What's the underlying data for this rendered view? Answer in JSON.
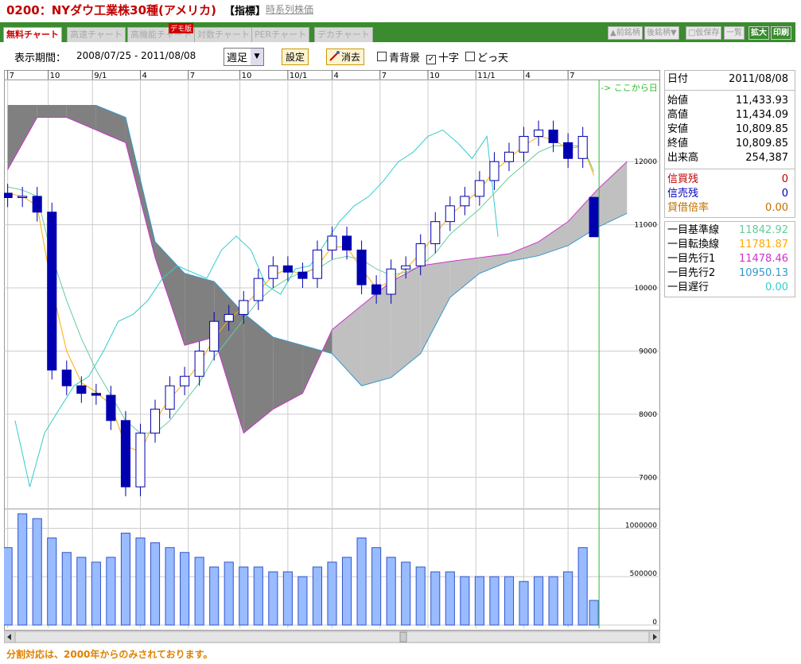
{
  "header": {
    "title": "0200：NYダウ工業株30種(アメリカ)",
    "indicator": "【指標】",
    "link": "時系列株価"
  },
  "tabs": [
    "無料チャート",
    "高速チャート",
    "高機能チャート",
    "対数チャート",
    "PERチャート",
    "デカチャート"
  ],
  "tab_badge": "デモ版",
  "nav_buttons": [
    "▲前銘柄",
    "後銘柄▼",
    "□仮保存",
    "一覧",
    "拡大",
    "印刷"
  ],
  "toolbar": {
    "period_label": "表示期間：",
    "period": "2008/07/25 - 2011/08/08",
    "interval": "週足",
    "set_button": "設定",
    "clear_button": "消去",
    "checkboxes": [
      {
        "label": "青背景",
        "checked": false
      },
      {
        "label": "十字",
        "checked": true
      },
      {
        "label": "どっ天",
        "checked": false
      }
    ]
  },
  "panel": {
    "date_label": "日付",
    "date": "2011/08/08",
    "prices": [
      [
        "始値",
        "11,433.93"
      ],
      [
        "高値",
        "11,434.09"
      ],
      [
        "安値",
        "10,809.85"
      ],
      [
        "終値",
        "10,809.85"
      ],
      [
        "出来高",
        "254,387"
      ]
    ],
    "margin": [
      [
        "信買残",
        "0"
      ],
      [
        "信売残",
        "0"
      ],
      [
        "貸借倍率",
        "0.00"
      ]
    ]
  },
  "footer": "分割対応は、2000年からのみされております。",
  "chart_data": {
    "type": "candlestick",
    "x": [
      0,
      4,
      8,
      12,
      16,
      20,
      24,
      28,
      32,
      36,
      40,
      44,
      48,
      52,
      56,
      60,
      64,
      68,
      72,
      76,
      80,
      84,
      88,
      92,
      96,
      100,
      104,
      108,
      112,
      116,
      120,
      124,
      128,
      132,
      136,
      140,
      144,
      148,
      152,
      156,
      159
    ],
    "open": [
      11500,
      11430,
      11450,
      11200,
      8700,
      8450,
      8330,
      8300,
      7900,
      6850,
      7700,
      8080,
      8450,
      8600,
      9000,
      9470,
      9580,
      9800,
      10150,
      10350,
      10250,
      10150,
      10600,
      10820,
      10600,
      10050,
      9900,
      10300,
      10350,
      10700,
      11050,
      11300,
      11450,
      11700,
      12000,
      12150,
      12400,
      12500,
      12300,
      12050,
      11434
    ],
    "high": [
      11650,
      11600,
      11600,
      11350,
      8850,
      8600,
      8480,
      8450,
      8050,
      7850,
      8230,
      8600,
      8750,
      9150,
      9620,
      9730,
      9950,
      10300,
      10500,
      10500,
      10400,
      10750,
      10970,
      10970,
      10750,
      10200,
      10450,
      10500,
      10850,
      11200,
      11450,
      11600,
      11850,
      12150,
      12300,
      12550,
      12650,
      12650,
      12450,
      12550,
      11434
    ],
    "low": [
      11280,
      11280,
      11050,
      8550,
      8300,
      8180,
      8150,
      7750,
      6700,
      6700,
      7550,
      7930,
      8300,
      8450,
      8850,
      9320,
      9430,
      9650,
      10000,
      10100,
      10000,
      10000,
      10450,
      10450,
      9900,
      9750,
      9750,
      10150,
      10200,
      10550,
      10900,
      11150,
      11300,
      11550,
      11850,
      12000,
      12250,
      12150,
      11900,
      11900,
      10810
    ],
    "close": [
      11430,
      11450,
      11200,
      8700,
      8450,
      8330,
      8300,
      7900,
      6850,
      7700,
      8080,
      8450,
      8600,
      9000,
      9470,
      9580,
      9800,
      10150,
      10350,
      10250,
      10150,
      10600,
      10820,
      10600,
      10050,
      9900,
      10300,
      10350,
      10700,
      11050,
      11300,
      11450,
      11700,
      12000,
      12150,
      12400,
      12500,
      12300,
      12050,
      12400,
      10810
    ],
    "volume": [
      800000,
      1150000,
      1100000,
      900000,
      750000,
      700000,
      650000,
      700000,
      950000,
      900000,
      850000,
      800000,
      750000,
      700000,
      600000,
      650000,
      600000,
      600000,
      550000,
      550000,
      500000,
      600000,
      650000,
      700000,
      900000,
      800000,
      700000,
      650000,
      600000,
      550000,
      550000,
      500000,
      500000,
      500000,
      500000,
      450000,
      500000,
      500000,
      550000,
      800000,
      254387
    ],
    "candle_colors": {
      "up": "#ffffff",
      "down": "#0000b0",
      "edge": "#0000b0"
    },
    "volume_color": "#99bbff",
    "cloud_colors": {
      "up": "#c0c0c0",
      "down": "#808080"
    },
    "series": [
      {
        "name": "一目基準線",
        "color": "#66cc99",
        "legend_value": "11842.92",
        "values": [
          11600,
          11550,
          11450,
          10500,
          9800,
          9200,
          8700,
          8300,
          7900,
          7700,
          7700,
          7900,
          8200,
          8500,
          8900,
          9200,
          9500,
          9800,
          10000,
          10150,
          10250,
          10300,
          10450,
          10500,
          10450,
          10300,
          10200,
          10250,
          10350,
          10550,
          10850,
          11050,
          11250,
          11500,
          11750,
          11950,
          12150,
          12250,
          12250,
          12250,
          11843
        ]
      },
      {
        "name": "一目転換線",
        "color": "#ffaa00",
        "legend_value": "11781.87",
        "values": [
          11500,
          11450,
          11300,
          10000,
          9000,
          8500,
          8350,
          8150,
          7500,
          7400,
          7900,
          8250,
          8500,
          8800,
          9200,
          9500,
          9700,
          9950,
          10200,
          10300,
          10200,
          10350,
          10650,
          10650,
          10300,
          10000,
          10100,
          10300,
          10550,
          10850,
          11150,
          11350,
          11550,
          11850,
          12050,
          12250,
          12400,
          12350,
          12200,
          12250,
          11782
        ]
      },
      {
        "name": "一目先行1",
        "color": "#cc33cc",
        "legend_value": "11478.46",
        "x": [
          0,
          8,
          16,
          24,
          32,
          40,
          48,
          56,
          64,
          72,
          80,
          88,
          96,
          104,
          112,
          120,
          128,
          136,
          144,
          152,
          160,
          168
        ],
        "values": [
          11870,
          12700,
          12700,
          12500,
          12300,
          10480,
          9090,
          9220,
          7700,
          8080,
          8330,
          9340,
          9720,
          10100,
          10350,
          10420,
          10480,
          10540,
          10730,
          11050,
          11560,
          12000
        ]
      },
      {
        "name": "一目先行2",
        "color": "#3399cc",
        "legend_value": "10950.13",
        "x": [
          0,
          8,
          16,
          24,
          32,
          40,
          48,
          56,
          64,
          72,
          80,
          88,
          96,
          104,
          112,
          120,
          128,
          136,
          144,
          152,
          160,
          168
        ],
        "values": [
          12890,
          12890,
          12890,
          12890,
          12700,
          10730,
          10230,
          10100,
          9600,
          9220,
          9090,
          8960,
          8450,
          8580,
          8960,
          9850,
          10230,
          10420,
          10510,
          10670,
          10960,
          11180
        ]
      },
      {
        "name": "一目遅行",
        "color": "#33cccc",
        "legend_value": "0.00",
        "x": [
          2,
          6,
          10,
          14,
          18,
          22,
          26,
          30,
          34,
          38,
          42,
          46,
          50,
          54,
          58,
          62,
          66,
          70,
          74,
          78,
          82,
          86,
          90,
          94,
          98,
          102,
          106,
          110,
          114,
          118,
          122,
          126,
          130,
          133
        ],
        "values": [
          7900,
          6850,
          7700,
          8080,
          8450,
          8600,
          9000,
          9470,
          9580,
          9800,
          10150,
          10350,
          10250,
          10150,
          10600,
          10820,
          10600,
          10050,
          9900,
          10300,
          10350,
          10700,
          11050,
          11300,
          11450,
          11700,
          12000,
          12150,
          12400,
          12500,
          12300,
          12050,
          12400,
          10810
        ]
      }
    ],
    "xlim": [
      -1,
      177
    ],
    "xticks": [
      {
        "value": 0,
        "label": "7"
      },
      {
        "value": 11,
        "label": "10"
      },
      {
        "value": 23,
        "label": "9/1"
      },
      {
        "value": 36,
        "label": "4"
      },
      {
        "value": 49,
        "label": "7"
      },
      {
        "value": 63,
        "label": "10"
      },
      {
        "value": 76,
        "label": "10/1"
      },
      {
        "value": 88,
        "label": "4"
      },
      {
        "value": 101,
        "label": "7"
      },
      {
        "value": 114,
        "label": "10"
      },
      {
        "value": 127,
        "label": "11/1"
      },
      {
        "value": 140,
        "label": "4"
      },
      {
        "value": 152,
        "label": "7"
      }
    ],
    "ylim": [
      6500,
      13300
    ],
    "yticks": [
      7000,
      8000,
      9000,
      10000,
      11000,
      12000
    ],
    "y2lim": [
      0,
      1200000
    ],
    "y2ticks": [
      0,
      500000,
      1000000
    ],
    "grid": true,
    "now_line": {
      "x": 159,
      "label": "-> ここから日",
      "color": "#33bb33"
    }
  }
}
